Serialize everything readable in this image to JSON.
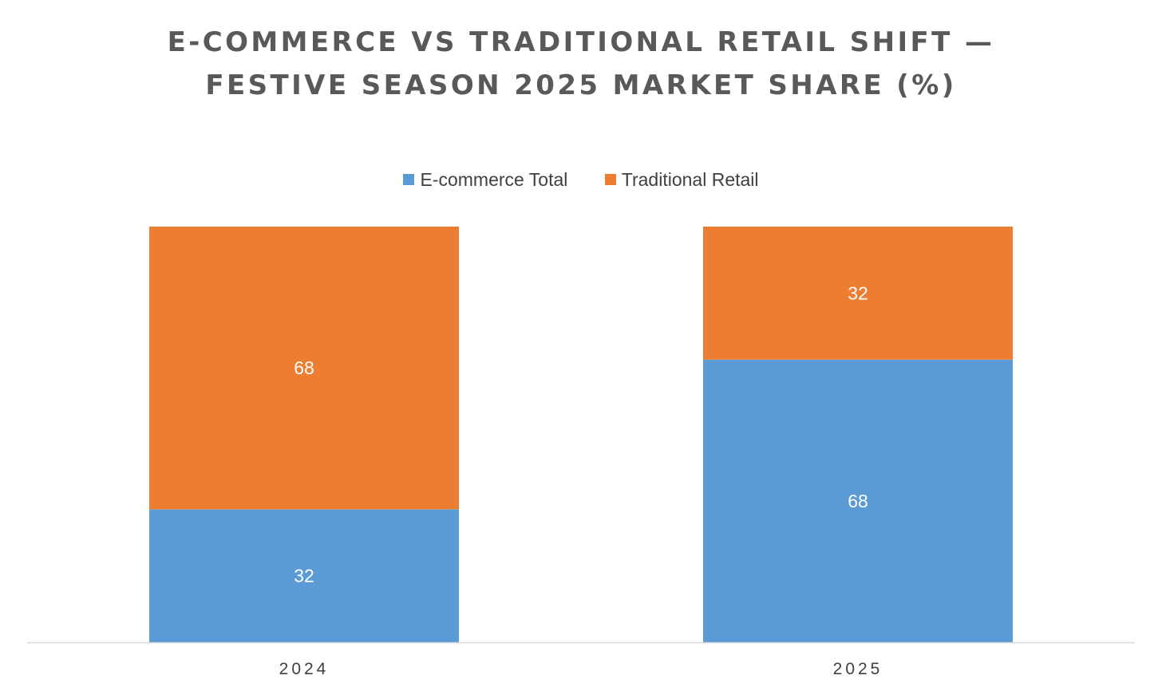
{
  "chart_data": {
    "type": "bar",
    "stacked": true,
    "title_lines": [
      "E-COMMERCE VS TRADITIONAL RETAIL SHIFT —",
      "FESTIVE SEASON 2025 MARKET SHARE (%)"
    ],
    "categories": [
      "2024",
      "2025"
    ],
    "series": [
      {
        "name": "E-commerce Total",
        "color": "#5B9BD5",
        "values": [
          32,
          68
        ]
      },
      {
        "name": "Traditional Retail",
        "color": "#ED7D31",
        "values": [
          68,
          32
        ]
      }
    ],
    "ylim": [
      0,
      100
    ],
    "xlabel": "",
    "ylabel": "",
    "grid": false,
    "legend_position": "top",
    "data_label_color": "#FFFFFF",
    "axis_color": "#D9D9D9",
    "tick_label_color": "#404040"
  }
}
